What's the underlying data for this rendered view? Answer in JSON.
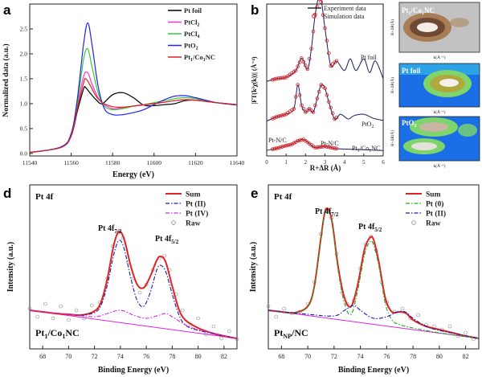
{
  "chart_data": [
    {
      "panel": "a",
      "type": "line",
      "xlabel": "Energy (eV)",
      "ylabel": "Normalized data (a.u.)",
      "xlim": [
        11540,
        11640
      ],
      "ylim": [
        -0.05,
        3.0
      ],
      "xticks": [
        11540,
        11560,
        11580,
        11600,
        11620,
        11640
      ],
      "yticks": [
        0.0,
        0.5,
        1.0,
        1.5,
        2.0,
        2.5
      ],
      "legend_position": "top-right",
      "series": [
        {
          "name": "Pt foil",
          "color": "#000000",
          "x": [
            11540,
            11555,
            11560,
            11563,
            11566,
            11567,
            11569,
            11572,
            11575,
            11580,
            11585,
            11590,
            11595,
            11600,
            11605,
            11610,
            11615,
            11620,
            11630,
            11640
          ],
          "y": [
            0.02,
            0.12,
            0.35,
            0.85,
            1.3,
            1.32,
            1.22,
            1.08,
            1.0,
            1.18,
            1.22,
            1.12,
            0.97,
            0.96,
            0.98,
            1.0,
            1.06,
            1.07,
            1.02,
            0.98
          ]
        },
        {
          "name": "PtCl2",
          "color": "#ff33cc",
          "x": [
            11540,
            11555,
            11560,
            11563,
            11566,
            11568,
            11570,
            11573,
            11576,
            11580,
            11585,
            11590,
            11595,
            11600,
            11605,
            11610,
            11615,
            11620,
            11630,
            11640
          ],
          "y": [
            0.02,
            0.12,
            0.36,
            0.95,
            1.55,
            1.62,
            1.4,
            1.12,
            0.98,
            0.9,
            0.92,
            0.95,
            0.97,
            1.0,
            1.03,
            1.06,
            1.08,
            1.07,
            1.02,
            0.98
          ]
        },
        {
          "name": "PtCl4",
          "color": "#33cc33",
          "x": [
            11540,
            11555,
            11560,
            11563,
            11566,
            11568,
            11570,
            11573,
            11576,
            11580,
            11585,
            11590,
            11595,
            11600,
            11605,
            11610,
            11615,
            11620,
            11630,
            11640
          ],
          "y": [
            0.02,
            0.12,
            0.37,
            1.0,
            1.9,
            2.1,
            1.75,
            1.22,
            0.95,
            0.88,
            0.9,
            0.95,
            0.98,
            1.02,
            1.06,
            1.1,
            1.12,
            1.1,
            1.02,
            0.98
          ]
        },
        {
          "name": "PtO2",
          "color": "#2222ee",
          "x": [
            11540,
            11555,
            11560,
            11563,
            11566,
            11568,
            11570,
            11573,
            11576,
            11580,
            11585,
            11590,
            11595,
            11600,
            11605,
            11610,
            11615,
            11620,
            11630,
            11640
          ],
          "y": [
            0.02,
            0.13,
            0.4,
            1.1,
            2.2,
            2.62,
            2.2,
            1.35,
            0.9,
            0.78,
            0.78,
            0.82,
            0.88,
            0.98,
            1.08,
            1.15,
            1.16,
            1.12,
            1.02,
            0.97
          ]
        },
        {
          "name": "Pt1/Co1NC",
          "color": "#dd2222",
          "x": [
            11540,
            11555,
            11560,
            11563,
            11566,
            11567,
            11569,
            11572,
            11575,
            11580,
            11585,
            11590,
            11595,
            11600,
            11605,
            11610,
            11615,
            11620,
            11630,
            11640
          ],
          "y": [
            0.02,
            0.12,
            0.35,
            0.9,
            1.42,
            1.5,
            1.38,
            1.15,
            1.02,
            0.94,
            0.93,
            0.95,
            0.98,
            1.0,
            1.03,
            1.06,
            1.08,
            1.07,
            1.02,
            0.98
          ]
        }
      ]
    },
    {
      "panel": "b",
      "type": "line",
      "xlabel": "R+ΔR (Å)",
      "ylabel": "|FT(k³χ(k))| (Å⁻⁴)",
      "xlim": [
        0,
        6
      ],
      "xticks": [
        0,
        1,
        2,
        3,
        4,
        5,
        6
      ],
      "legend_position": "top-right",
      "legend": [
        {
          "name": "Experiment data",
          "style": "line",
          "color": "#000000"
        },
        {
          "name": "Simulation data",
          "style": "circle",
          "color": "#dd2222"
        }
      ],
      "curve_labels": [
        "Pt foil",
        "PtO2",
        "Pt1/Co1NC",
        "Pt-N/C",
        "Pt-N/C"
      ],
      "series": [
        {
          "name": "Pt foil",
          "offset": 1.0,
          "x": [
            0,
            0.5,
            1.0,
            1.5,
            1.8,
            2.1,
            2.3,
            2.5,
            2.75,
            3.0,
            3.3,
            3.6,
            4.0,
            4.3,
            4.6,
            5.0,
            5.3,
            5.6,
            6.0
          ],
          "y": [
            0.02,
            0.06,
            0.08,
            0.18,
            0.36,
            0.2,
            0.5,
            1.0,
            1.28,
            0.8,
            0.25,
            0.32,
            0.18,
            0.35,
            0.18,
            0.35,
            0.15,
            0.32,
            0.06
          ]
        },
        {
          "name": "PtO2",
          "offset": 0.42,
          "x": [
            0,
            0.5,
            1.0,
            1.4,
            1.6,
            1.8,
            2.0,
            2.2,
            2.4,
            2.6,
            2.8,
            3.0,
            3.2,
            3.5,
            3.8,
            4.2,
            4.5,
            5.0,
            5.5,
            6.0
          ],
          "y": [
            0.02,
            0.08,
            0.12,
            0.2,
            0.55,
            0.25,
            0.15,
            0.2,
            0.15,
            0.35,
            0.55,
            0.5,
            0.3,
            0.05,
            0.12,
            0.05,
            0.1,
            0.12,
            0.06,
            0.03
          ]
        },
        {
          "name": "Pt1/Co1NC",
          "offset": 0.0,
          "x": [
            0,
            0.5,
            1.0,
            1.3,
            1.6,
            1.9,
            2.2,
            2.5,
            3.0,
            3.5,
            4.0,
            5.0,
            6.0
          ],
          "y": [
            0.01,
            0.04,
            0.08,
            0.1,
            0.15,
            0.17,
            0.11,
            0.05,
            0.07,
            0.04,
            0.03,
            0.02,
            0.01
          ]
        }
      ]
    },
    {
      "panel": "c",
      "type": "heatmap",
      "xlabel": "k(Å⁻¹)",
      "ylabel": "R+ΔR(Å)",
      "xticks": [
        0,
        5,
        10,
        15
      ],
      "yticks": [
        0,
        1,
        2,
        3,
        4
      ],
      "maps": [
        {
          "name": "Pt1/Co1NC",
          "peak_k": 7,
          "peak_r": 1.6,
          "background": "#c9c9c9"
        },
        {
          "name": "Pt foil",
          "peak_k": 11,
          "peak_r": 2.6,
          "background": "#1e6fe0"
        },
        {
          "name": "PtO2",
          "peak_k": 9,
          "peak_r": 2.8,
          "background": "#1e6fe0"
        }
      ]
    },
    {
      "panel": "d",
      "type": "line",
      "title": "Pt 4f",
      "sample": "Pt1/Co1NC",
      "xlabel": "Binding Energy (eV)",
      "ylabel": "Intensity (a.u.)",
      "xlim": [
        67,
        83
      ],
      "xticks": [
        68,
        70,
        72,
        74,
        76,
        78,
        80,
        82
      ],
      "legend_position": "top-right",
      "peak_labels": [
        {
          "text": "Pt 4f7/2",
          "x": 73.8
        },
        {
          "text": "Pt 4f5/2",
          "x": 77.1
        }
      ],
      "series": [
        {
          "name": "Sum",
          "color": "#e02424",
          "style": "solid",
          "x": [
            67,
            68,
            69,
            70,
            71,
            72,
            72.5,
            73,
            73.5,
            73.9,
            74.3,
            74.8,
            75.3,
            75.8,
            76.3,
            76.8,
            77.1,
            77.5,
            78,
            78.5,
            79,
            80,
            81,
            82,
            83
          ],
          "y": [
            0.4,
            0.38,
            0.36,
            0.35,
            0.34,
            0.39,
            0.5,
            0.8,
            1.22,
            1.38,
            1.28,
            0.95,
            0.72,
            0.68,
            0.82,
            1.02,
            1.07,
            1.0,
            0.7,
            0.42,
            0.28,
            0.18,
            0.12,
            0.08,
            0.05
          ]
        },
        {
          "name": "Pt (II)",
          "color": "#1a1aaa",
          "style": "dashdot",
          "x": [
            67,
            70,
            71,
            72,
            72.5,
            73,
            73.5,
            73.9,
            74.3,
            74.8,
            75.3,
            75.8,
            76.3,
            76.8,
            77.1,
            77.5,
            78,
            78.5,
            79,
            80,
            83
          ],
          "y": [
            0.4,
            0.35,
            0.34,
            0.37,
            0.46,
            0.72,
            1.1,
            1.27,
            1.16,
            0.8,
            0.52,
            0.45,
            0.62,
            0.9,
            0.96,
            0.88,
            0.6,
            0.35,
            0.22,
            0.15,
            0.05
          ]
        },
        {
          "name": "Pt (IV)",
          "color": "#dd22dd",
          "style": "dashdot",
          "x": [
            67,
            70,
            72,
            73,
            74,
            75,
            76,
            77,
            77.5,
            78,
            79,
            80,
            83
          ],
          "y": [
            0.4,
            0.35,
            0.32,
            0.36,
            0.4,
            0.34,
            0.3,
            0.34,
            0.36,
            0.32,
            0.22,
            0.16,
            0.05
          ]
        },
        {
          "name": "Raw",
          "color": "#888888",
          "style": "circle",
          "x": [
            67,
            67.6,
            68.2,
            68.8,
            69.4,
            70,
            70.6,
            71.2,
            71.8,
            72.4,
            73,
            73.4,
            73.8,
            74.2,
            74.6,
            75,
            75.5,
            76,
            76.5,
            77,
            77.4,
            77.8,
            78.3,
            78.8,
            79.4,
            80,
            80.6,
            81.2,
            81.8,
            82.4,
            83
          ],
          "y": [
            0.42,
            0.32,
            0.48,
            0.3,
            0.45,
            0.28,
            0.4,
            0.3,
            0.46,
            0.5,
            0.8,
            1.2,
            1.36,
            1.3,
            1.0,
            0.8,
            0.62,
            0.72,
            0.9,
            1.05,
            1.08,
            0.9,
            0.6,
            0.4,
            0.22,
            0.3,
            0.1,
            0.2,
            0.05,
            0.14,
            0.04
          ]
        }
      ]
    },
    {
      "panel": "e",
      "type": "line",
      "title": "Pt 4f",
      "sample": "PtNP/NC",
      "xlabel": "Binding Energy (eV)",
      "ylabel": "Intensity (a.u.)",
      "xlim": [
        67,
        83
      ],
      "xticks": [
        68,
        70,
        72,
        74,
        76,
        78,
        80,
        82
      ],
      "legend_position": "top-right",
      "peak_labels": [
        {
          "text": "Pt 4f7/2",
          "x": 71.5
        },
        {
          "text": "Pt 4f5/2",
          "x": 74.9
        }
      ],
      "series": [
        {
          "name": "Sum",
          "color": "#e02424",
          "style": "solid",
          "x": [
            67,
            68,
            69,
            70,
            70.5,
            71,
            71.3,
            71.6,
            71.9,
            72.3,
            72.8,
            73.3,
            73.8,
            74.3,
            74.7,
            75,
            75.4,
            75.9,
            76.4,
            77,
            77.5,
            78,
            79,
            80,
            81,
            82,
            83
          ],
          "y": [
            0.4,
            0.38,
            0.37,
            0.45,
            0.7,
            1.3,
            1.62,
            1.65,
            1.45,
            0.95,
            0.55,
            0.45,
            0.72,
            1.15,
            1.3,
            1.28,
            1.0,
            0.55,
            0.38,
            0.38,
            0.36,
            0.28,
            0.2,
            0.16,
            0.12,
            0.08,
            0.05
          ]
        },
        {
          "name": "Pt (0)",
          "color": "#22aa22",
          "style": "dashdot",
          "x": [
            67,
            68,
            69,
            70,
            70.5,
            71,
            71.3,
            71.6,
            71.9,
            72.3,
            72.8,
            73.3,
            73.8,
            74.3,
            74.7,
            75,
            75.4,
            75.9,
            76.4,
            77,
            78,
            80,
            83
          ],
          "y": [
            0.4,
            0.38,
            0.37,
            0.44,
            0.68,
            1.28,
            1.6,
            1.63,
            1.42,
            0.9,
            0.48,
            0.35,
            0.65,
            1.08,
            1.25,
            1.22,
            0.95,
            0.48,
            0.28,
            0.22,
            0.18,
            0.12,
            0.05
          ]
        },
        {
          "name": "Pt (II)",
          "color": "#1a1aaa",
          "style": "dashdot",
          "x": [
            67,
            70,
            72,
            72.8,
            73.5,
            74,
            75,
            76,
            76.8,
            77.4,
            78,
            79,
            80,
            83
          ],
          "y": [
            0.4,
            0.35,
            0.33,
            0.4,
            0.46,
            0.4,
            0.3,
            0.32,
            0.38,
            0.38,
            0.3,
            0.2,
            0.15,
            0.05
          ]
        },
        {
          "name": "Raw",
          "color": "#888888",
          "style": "circle",
          "x": [
            67,
            67.6,
            68.2,
            68.8,
            69.4,
            70,
            70.5,
            71,
            71.4,
            71.8,
            72.2,
            72.6,
            73,
            73.5,
            74,
            74.4,
            74.8,
            75.2,
            75.6,
            76,
            76.6,
            77.2,
            77.8,
            78.4,
            79,
            79.6,
            80.2,
            80.8,
            81.4,
            82,
            82.6
          ],
          "y": [
            0.45,
            0.32,
            0.42,
            0.36,
            0.38,
            0.48,
            0.75,
            1.35,
            1.66,
            1.55,
            1.1,
            0.62,
            0.48,
            0.52,
            0.92,
            1.22,
            1.32,
            1.15,
            0.75,
            0.5,
            0.38,
            0.42,
            0.3,
            0.34,
            0.22,
            0.2,
            0.16,
            0.2,
            0.08,
            0.12,
            0.04
          ]
        }
      ]
    }
  ],
  "labels": {
    "panel_a": "a",
    "panel_b": "b",
    "panel_c": "c",
    "panel_d": "d",
    "panel_e": "e",
    "a_xlabel": "Energy (eV)",
    "a_ylabel": "Normalized data (a.u.)",
    "b_xlabel": "R+ΔR (Å)",
    "b_ylabel": "|FT(k³χ(k))| (Å⁻⁴)",
    "b_legend_exp": "Experiment data",
    "b_legend_sim": "Simulation data",
    "b_lab_foil": "Pt foil",
    "b_lab_pto2": "PtO",
    "b_lab_pto2_sub": "2",
    "b_lab_ptn1": "Pt-N/C",
    "b_lab_ptn2": "Pt-N/C",
    "c_title1_a": "Pt",
    "c_title1_b": "1",
    "c_title1_c": "/Co",
    "c_title1_d": "1",
    "c_title1_e": "NC",
    "c_title2": "Pt foil",
    "c_title3_a": "PtO",
    "c_title3_b": "2",
    "c_xlabel": "k(Å⁻¹)",
    "c_ylabel": "R+ΔR(Å)",
    "d_title": "Pt 4f",
    "e_title": "Pt 4f",
    "d_peak1": "Pt 4f",
    "d_peak1_sub": "7/2",
    "d_peak2": "Pt 4f",
    "d_peak2_sub": "5/2",
    "e_peak1": "Pt 4f",
    "e_peak1_sub": "7/2",
    "e_peak2": "Pt 4f",
    "e_peak2_sub": "5/2",
    "d_sample_a": "Pt",
    "d_sample_b": "1",
    "d_sample_c": "/Co",
    "d_sample_d": "1",
    "d_sample_e": "NC",
    "e_sample_a": "Pt",
    "e_sample_b": "NP",
    "e_sample_c": "/NC",
    "xps_xlabel": "Binding Energy (eV)",
    "xps_ylabel": "Intensity (a.u.)"
  }
}
